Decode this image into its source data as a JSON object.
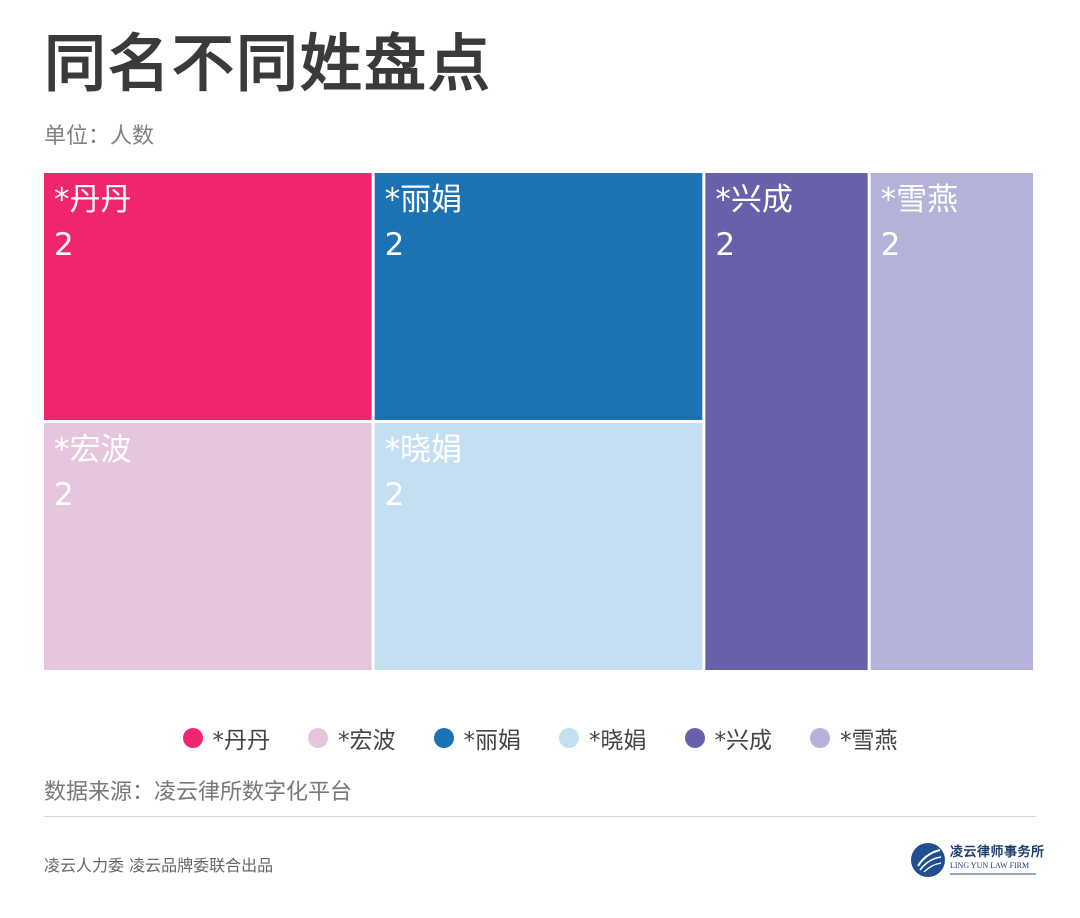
{
  "header": {
    "title": "同名不同姓盘点",
    "subtitle": "单位：人数"
  },
  "chart_data": {
    "type": "treemap",
    "unit": "人数",
    "items": [
      {
        "name": "*丹丹",
        "value": 2,
        "color": "#ef2570"
      },
      {
        "name": "*宏波",
        "value": 2,
        "color": "#e5c6de"
      },
      {
        "name": "*丽娟",
        "value": 2,
        "color": "#1c72b2"
      },
      {
        "name": "*晓娟",
        "value": 2,
        "color": "#c5dff2"
      },
      {
        "name": "*兴成",
        "value": 2,
        "color": "#6761ab"
      },
      {
        "name": "*雪燕",
        "value": 2,
        "color": "#b5b2d9"
      }
    ],
    "legend_position": "bottom"
  },
  "source": "数据来源：凌云律所数字化平台",
  "footer": {
    "credit": "凌云人力委 凌云品牌委联合出品",
    "logo": {
      "cn": "凌云律师事务所",
      "en": "LING YUN LAW FIRM"
    }
  }
}
